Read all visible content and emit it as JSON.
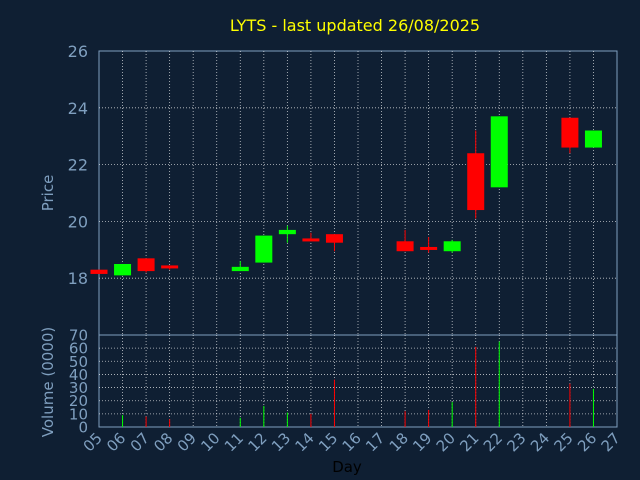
{
  "chart_data": {
    "type": "candlestick",
    "title": "LYTS - last updated 26/08/2025",
    "xlabel": "Day",
    "price_ylabel": "Price",
    "volume_ylabel": "Volume (0000)",
    "price_ylim": [
      16,
      26
    ],
    "price_yticks": [
      "18",
      "20",
      "22",
      "24",
      "26"
    ],
    "volume_ylim": [
      0,
      70
    ],
    "volume_yticks": [
      "0",
      "10",
      "20",
      "30",
      "40",
      "50",
      "60",
      "70"
    ],
    "x_tick_labels": [
      "05",
      "06",
      "07",
      "08",
      "09",
      "10",
      "11",
      "12",
      "13",
      "14",
      "15",
      "16",
      "17",
      "18",
      "19",
      "20",
      "21",
      "22",
      "23",
      "24",
      "25",
      "26",
      "27"
    ],
    "grid": true,
    "colors": {
      "background": "#0f1f33",
      "up": "#00ff00",
      "down": "#ff0000",
      "text": "#7f9fbf",
      "title": "#ffff00",
      "grid": "#ffffff"
    },
    "candles": [
      {
        "day": "05",
        "open": 18.3,
        "high": 18.3,
        "low": 18.15,
        "close": 18.15
      },
      {
        "day": "06",
        "open": 18.1,
        "high": 18.5,
        "low": 18.1,
        "close": 18.5
      },
      {
        "day": "07",
        "open": 18.7,
        "high": 18.7,
        "low": 18.2,
        "close": 18.25
      },
      {
        "day": "08",
        "open": 18.45,
        "high": 18.45,
        "low": 18.3,
        "close": 18.35
      },
      {
        "day": "11",
        "open": 18.25,
        "high": 18.6,
        "low": 18.25,
        "close": 18.4
      },
      {
        "day": "12",
        "open": 18.55,
        "high": 19.5,
        "low": 18.55,
        "close": 19.5
      },
      {
        "day": "13",
        "open": 19.55,
        "high": 19.85,
        "low": 19.25,
        "close": 19.7
      },
      {
        "day": "14",
        "open": 19.4,
        "high": 19.6,
        "low": 19.35,
        "close": 19.35
      },
      {
        "day": "15",
        "open": 19.55,
        "high": 19.55,
        "low": 18.95,
        "close": 19.25
      },
      {
        "day": "18",
        "open": 19.3,
        "high": 19.7,
        "low": 18.95,
        "close": 18.95
      },
      {
        "day": "19",
        "open": 19.1,
        "high": 19.45,
        "low": 18.9,
        "close": 19.0
      },
      {
        "day": "20",
        "open": 18.95,
        "high": 19.35,
        "low": 18.9,
        "close": 19.3
      },
      {
        "day": "21",
        "open": 22.4,
        "high": 23.2,
        "low": 20.1,
        "close": 20.4
      },
      {
        "day": "22",
        "open": 21.2,
        "high": 23.7,
        "low": 21.2,
        "close": 23.7
      },
      {
        "day": "25",
        "open": 23.65,
        "high": 23.65,
        "low": 22.4,
        "close": 22.6
      },
      {
        "day": "26",
        "open": 22.6,
        "high": 23.2,
        "low": 22.6,
        "close": 23.2
      }
    ],
    "volume": [
      {
        "day": "06",
        "value": 9,
        "dir": "up"
      },
      {
        "day": "07",
        "value": 8,
        "dir": "down"
      },
      {
        "day": "08",
        "value": 6,
        "dir": "down"
      },
      {
        "day": "11",
        "value": 7,
        "dir": "up"
      },
      {
        "day": "12",
        "value": 16,
        "dir": "up"
      },
      {
        "day": "13",
        "value": 11,
        "dir": "up"
      },
      {
        "day": "14",
        "value": 10,
        "dir": "down"
      },
      {
        "day": "15",
        "value": 36,
        "dir": "down"
      },
      {
        "day": "18",
        "value": 12,
        "dir": "down"
      },
      {
        "day": "19",
        "value": 13,
        "dir": "down"
      },
      {
        "day": "20",
        "value": 19,
        "dir": "up"
      },
      {
        "day": "21",
        "value": 61,
        "dir": "down"
      },
      {
        "day": "22",
        "value": 65,
        "dir": "up"
      },
      {
        "day": "25",
        "value": 33,
        "dir": "down"
      },
      {
        "day": "26",
        "value": 29,
        "dir": "up"
      }
    ]
  }
}
